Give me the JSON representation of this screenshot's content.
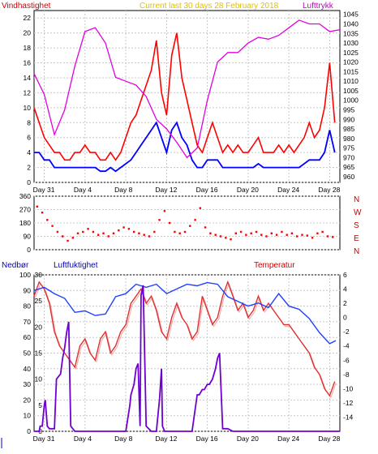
{
  "colors": {
    "wind_max": "#ff0000",
    "wind_avg": "#0000ff",
    "pressure": "#e000e0",
    "direction": "#ff0000",
    "humidity": "#2040ff",
    "temperature": "#e03030",
    "temperature_light": "#f08080",
    "rain": "#7000d0",
    "label_wind": "#d00000",
    "label_pressure": "#c000c0",
    "label_title": "#e0c000",
    "label_compass": "#c00000",
    "label_rain": "#0000c0",
    "label_humidity": "#0000c0",
    "label_temp": "#d00000"
  },
  "chart_data": [
    {
      "type": "line",
      "title": "Current last 30 days 28 February 2018",
      "ylabel_left": "Vindhastighet",
      "ylabel_right": "Lufttrykk",
      "x_ticks": [
        "Day 31",
        "Day 4",
        "Day 8",
        "Day 12",
        "Day 16",
        "Day 20",
        "Day 24",
        "Day 28"
      ],
      "x_tick_days": [
        1,
        5,
        9,
        13,
        17,
        21,
        25,
        29
      ],
      "xlim": [
        0,
        30
      ],
      "ylim_left": [
        0,
        23
      ],
      "ylim_right": [
        957,
        1047
      ],
      "yticks_left": [
        "0",
        "2",
        "4",
        "6",
        "8",
        "10",
        "12",
        "14",
        "16",
        "18",
        "20",
        "22"
      ],
      "yticks_right": [
        "960",
        "965",
        "970",
        "975",
        "980",
        "985",
        "990",
        "995",
        "1000",
        "1005",
        "1010",
        "1015",
        "1020",
        "1025",
        "1030",
        "1035",
        "1040",
        "1045"
      ],
      "series": [
        {
          "id": "wind_max",
          "axis": "left",
          "x": [
            0,
            0.5,
            1,
            1.5,
            2,
            2.5,
            3,
            3.5,
            4,
            4.5,
            5,
            5.5,
            6,
            6.5,
            7,
            7.5,
            8,
            8.5,
            9,
            9.5,
            10,
            10.5,
            11,
            11.5,
            12,
            12.5,
            13,
            13.5,
            14,
            14.5,
            15,
            15.5,
            16,
            16.5,
            17,
            17.5,
            18,
            18.5,
            19,
            19.5,
            20,
            20.5,
            21,
            21.5,
            22,
            22.5,
            23,
            23.5,
            24,
            24.5,
            25,
            25.5,
            26,
            26.5,
            27,
            27.5,
            28,
            28.5,
            29,
            29.5
          ],
          "values": [
            10,
            8,
            6,
            5,
            4,
            4,
            3,
            3,
            4,
            4,
            5,
            4,
            4,
            3,
            3,
            4,
            3,
            4,
            6,
            8,
            9,
            11,
            13,
            15,
            19,
            12,
            9,
            17,
            20,
            14,
            11,
            8,
            5,
            4,
            6,
            8,
            6,
            4,
            5,
            4,
            5,
            4,
            4,
            5,
            6,
            4,
            4,
            4,
            5,
            4,
            5,
            4,
            5,
            6,
            8,
            6,
            7,
            10,
            16,
            8
          ]
        },
        {
          "id": "wind_avg",
          "axis": "left",
          "x": [
            0,
            0.5,
            1,
            1.5,
            2,
            2.5,
            3,
            3.5,
            4,
            4.5,
            5,
            5.5,
            6,
            6.5,
            7,
            7.5,
            8,
            8.5,
            9,
            9.5,
            10,
            10.5,
            11,
            11.5,
            12,
            12.5,
            13,
            13.5,
            14,
            14.5,
            15,
            15.5,
            16,
            16.5,
            17,
            17.5,
            18,
            18.5,
            19,
            19.5,
            20,
            20.5,
            21,
            21.5,
            22,
            22.5,
            23,
            23.5,
            24,
            24.5,
            25,
            25.5,
            26,
            26.5,
            27,
            27.5,
            28,
            28.5,
            29,
            29.5
          ],
          "values": [
            4,
            4,
            3,
            3,
            2,
            2,
            2,
            2,
            2,
            2,
            2,
            2,
            2,
            1.5,
            1.5,
            2,
            1.5,
            2,
            2.5,
            3,
            4,
            5,
            6,
            7,
            8,
            6,
            4,
            7,
            8,
            6,
            5,
            3,
            2,
            2,
            3,
            3,
            3,
            2,
            2,
            2,
            2,
            2,
            2,
            2,
            2.5,
            2,
            2,
            2,
            2,
            2,
            2,
            2,
            2,
            2.5,
            3,
            3,
            3,
            4,
            7,
            4
          ]
        },
        {
          "id": "pressure",
          "axis": "right",
          "x": [
            0,
            1,
            2,
            3,
            4,
            5,
            6,
            7,
            8,
            9,
            10,
            11,
            12,
            13,
            14,
            15,
            16,
            17,
            18,
            19,
            20,
            21,
            22,
            23,
            24,
            25,
            26,
            27,
            28,
            29,
            30
          ],
          "values": [
            1014,
            1003,
            982,
            995,
            1018,
            1036,
            1038,
            1030,
            1012,
            1010,
            1008,
            1002,
            990,
            985,
            978,
            970,
            975,
            1000,
            1020,
            1025,
            1025,
            1030,
            1033,
            1032,
            1034,
            1038,
            1042,
            1040,
            1040,
            1036,
            1037
          ]
        }
      ]
    },
    {
      "type": "scatter",
      "ylabel_right": [
        "N",
        "W",
        "S",
        "E",
        "N"
      ],
      "x_ticks": [],
      "xlim": [
        0,
        30
      ],
      "ylim": [
        0,
        360
      ],
      "yticks": [
        "0",
        "90",
        "180",
        "270",
        "360"
      ],
      "series": [
        {
          "id": "direction",
          "x": [
            0.3,
            0.8,
            1.3,
            1.8,
            2.3,
            2.8,
            3.3,
            3.8,
            4.3,
            4.8,
            5.3,
            5.8,
            6.3,
            6.8,
            7.3,
            7.8,
            8.3,
            8.8,
            9.3,
            9.8,
            10.3,
            10.8,
            11.3,
            11.8,
            12.3,
            12.8,
            13.3,
            13.8,
            14.3,
            14.8,
            15.3,
            15.8,
            16.3,
            16.8,
            17.3,
            17.8,
            18.3,
            18.8,
            19.3,
            19.8,
            20.3,
            20.8,
            21.3,
            21.8,
            22.3,
            22.8,
            23.3,
            23.8,
            24.3,
            24.8,
            25.3,
            25.8,
            26.3,
            26.8,
            27.3,
            27.8,
            28.3,
            28.8,
            29.3
          ],
          "values": [
            290,
            250,
            200,
            160,
            120,
            90,
            60,
            80,
            110,
            120,
            140,
            120,
            100,
            110,
            90,
            110,
            130,
            150,
            140,
            120,
            110,
            100,
            90,
            120,
            200,
            260,
            180,
            120,
            110,
            120,
            160,
            200,
            280,
            150,
            110,
            100,
            90,
            80,
            70,
            110,
            120,
            100,
            110,
            120,
            100,
            90,
            110,
            100,
            120,
            100,
            110,
            90,
            100,
            95,
            80,
            110,
            120,
            90,
            85
          ]
        }
      ]
    },
    {
      "type": "line",
      "ylabel_left": "Nedbør",
      "ylabel_center": "Luftfuktighet",
      "ylabel_right": "Temperatur",
      "x_ticks": [
        "Day 31",
        "Day 4",
        "Day 8",
        "Day 12",
        "Day 16",
        "Day 20",
        "Day 24",
        "Day 28"
      ],
      "x_tick_days": [
        1,
        5,
        9,
        13,
        17,
        21,
        25,
        29
      ],
      "xlim": [
        0,
        30
      ],
      "ylim_left": [
        0,
        100
      ],
      "ylim_center": [
        0,
        30
      ],
      "ylim_right": [
        -16,
        6
      ],
      "yticks_left": [
        "0",
        "10",
        "20",
        "30",
        "40",
        "50",
        "60",
        "70",
        "80",
        "90",
        "100"
      ],
      "yticks_center": [
        "0",
        "5",
        "10",
        "15",
        "20",
        "25",
        "30"
      ],
      "yticks_right": [
        "-14",
        "-12",
        "-10",
        "-8",
        "-6",
        "-4",
        "-2",
        "0",
        "2",
        "4",
        "6"
      ],
      "series": [
        {
          "id": "humidity",
          "axis": "left",
          "x": [
            0,
            1,
            2,
            3,
            4,
            5,
            6,
            7,
            8,
            9,
            10,
            11,
            12,
            13,
            14,
            15,
            16,
            17,
            18,
            19,
            20,
            21,
            22,
            23,
            24,
            25,
            26,
            27,
            28,
            29,
            29.6
          ],
          "values": [
            90,
            92,
            88,
            85,
            76,
            77,
            74,
            75,
            86,
            88,
            94,
            92,
            94,
            88,
            91,
            94,
            93,
            95,
            94,
            86,
            83,
            80,
            82,
            79,
            88,
            80,
            78,
            72,
            63,
            56,
            58
          ]
        },
        {
          "id": "temperature",
          "axis": "right",
          "x": [
            0,
            0.5,
            1,
            1.5,
            2,
            2.5,
            3,
            3.5,
            4,
            4.5,
            5,
            5.5,
            6,
            6.5,
            7,
            7.5,
            8,
            8.5,
            9,
            9.5,
            10,
            10.5,
            11,
            11.5,
            12,
            12.5,
            13,
            13.5,
            14,
            14.5,
            15,
            15.5,
            16,
            16.5,
            17,
            17.5,
            18,
            18.5,
            19,
            19.5,
            20,
            20.5,
            21,
            21.5,
            22,
            22.5,
            23,
            23.5,
            24,
            24.5,
            25,
            25.5,
            26,
            26.5,
            27,
            27.5,
            28,
            28.5,
            29,
            29.5
          ],
          "values": [
            3,
            5,
            4,
            2,
            -2,
            -4,
            -5,
            -6,
            -7,
            -4,
            -3,
            -5,
            -6,
            -3,
            -2,
            -5,
            -4,
            -2,
            -1,
            2,
            3,
            4,
            2,
            3,
            1,
            -2,
            -3,
            0,
            2,
            0,
            -1,
            -3,
            -2,
            3,
            1,
            -1,
            0,
            3,
            5,
            3,
            1,
            2,
            0,
            1,
            3,
            1,
            2,
            1,
            0,
            -1,
            -1,
            -2,
            -3,
            -4,
            -5,
            -7,
            -8,
            -10,
            -11,
            -9
          ]
        },
        {
          "id": "rain",
          "axis": "center",
          "x": [
            0,
            0.5,
            0.6,
            0.8,
            1,
            1.1,
            1.3,
            1.5,
            1.6,
            2,
            2.2,
            2.6,
            2.8,
            3,
            3.2,
            3.4,
            3.6,
            4,
            9,
            9.4,
            9.5,
            9.8,
            10,
            10.2,
            10.4,
            10.5,
            10.7,
            11,
            11.5,
            12,
            12.2,
            12.3,
            12.5,
            12.6,
            12.8,
            13.5,
            14,
            15,
            15.5,
            16,
            16.2,
            16.5,
            16.7,
            17,
            17.2,
            17.5,
            17.8,
            18,
            18.2,
            18.5,
            19,
            19.5,
            30
          ],
          "values": [
            0,
            0,
            1,
            1,
            5,
            6,
            1,
            0.5,
            0.5,
            0.5,
            10,
            11,
            14,
            16,
            19,
            21,
            1,
            0,
            0,
            5,
            7,
            9,
            12,
            13,
            1,
            26,
            28,
            1,
            0,
            0,
            4,
            6,
            12,
            1,
            0,
            0,
            0,
            0,
            0,
            7,
            7,
            8,
            8,
            9,
            9,
            10,
            12,
            14,
            15,
            0.5,
            0.5,
            0,
            0
          ]
        }
      ]
    }
  ]
}
